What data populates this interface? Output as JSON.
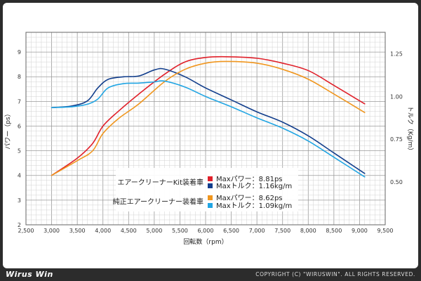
{
  "chart_data": {
    "type": "line",
    "xlabel": "回転数（rpm）",
    "ylabel_left": "パワー（ps）",
    "ylabel_right": "トルク（Kg/m）",
    "xlim": [
      2500,
      9500
    ],
    "ylim_left": [
      2,
      9.8
    ],
    "ylim_right": [
      0.25,
      1.375
    ],
    "grid": true,
    "x_ticks": [
      "2,500",
      "3,000",
      "3,500",
      "4,000",
      "4,500",
      "5,000",
      "5,500",
      "6,000",
      "6,500",
      "7,000",
      "7,500",
      "8,000",
      "8,500",
      "9,000",
      "9,500"
    ],
    "y_left_ticks": [
      "2",
      "3",
      "4",
      "5",
      "6",
      "7",
      "8",
      "9"
    ],
    "y_right_ticks": [
      "0.50",
      "0.75",
      "1.00",
      "1.25"
    ],
    "series": [
      {
        "name": "Maxパワー：8.81ps",
        "group": "エアークリーナーKit装着車",
        "axis": "left",
        "color": "#e0202a",
        "points": [
          [
            3000,
            4.0
          ],
          [
            3500,
            4.7
          ],
          [
            3800,
            5.3
          ],
          [
            4000,
            6.0
          ],
          [
            4300,
            6.6
          ],
          [
            4700,
            7.3
          ],
          [
            5200,
            8.1
          ],
          [
            5600,
            8.6
          ],
          [
            6000,
            8.78
          ],
          [
            6400,
            8.81
          ],
          [
            7000,
            8.75
          ],
          [
            7500,
            8.55
          ],
          [
            8000,
            8.25
          ],
          [
            8500,
            7.65
          ],
          [
            9100,
            6.9
          ]
        ]
      },
      {
        "name": "Maxトルク：1.16kg/m",
        "group": "エアークリーナーKit装着車",
        "axis": "right",
        "color": "#123e8c",
        "points": [
          [
            3000,
            0.935
          ],
          [
            3400,
            0.945
          ],
          [
            3700,
            0.975
          ],
          [
            3900,
            1.05
          ],
          [
            4100,
            1.1
          ],
          [
            4400,
            1.115
          ],
          [
            4700,
            1.12
          ],
          [
            5000,
            1.155
          ],
          [
            5200,
            1.16
          ],
          [
            5600,
            1.115
          ],
          [
            6000,
            1.05
          ],
          [
            6500,
            0.98
          ],
          [
            7000,
            0.91
          ],
          [
            7500,
            0.85
          ],
          [
            8000,
            0.77
          ],
          [
            8500,
            0.67
          ],
          [
            9100,
            0.55
          ]
        ]
      },
      {
        "name": "Maxパワー：8.62ps",
        "group": "純正エアークリーナー装着車",
        "axis": "left",
        "color": "#f0961e",
        "points": [
          [
            3000,
            4.0
          ],
          [
            3500,
            4.6
          ],
          [
            3800,
            5.0
          ],
          [
            4000,
            5.7
          ],
          [
            4300,
            6.3
          ],
          [
            4700,
            6.9
          ],
          [
            5200,
            7.8
          ],
          [
            5600,
            8.3
          ],
          [
            6000,
            8.55
          ],
          [
            6400,
            8.62
          ],
          [
            7000,
            8.55
          ],
          [
            7500,
            8.3
          ],
          [
            8000,
            7.9
          ],
          [
            8500,
            7.3
          ],
          [
            9100,
            6.55
          ]
        ]
      },
      {
        "name": "Maxトルク：1.09kg/m",
        "group": "純正エアークリーナー装着車",
        "axis": "right",
        "color": "#21a5e3",
        "points": [
          [
            3000,
            0.935
          ],
          [
            3400,
            0.94
          ],
          [
            3700,
            0.955
          ],
          [
            3900,
            0.985
          ],
          [
            4100,
            1.05
          ],
          [
            4400,
            1.075
          ],
          [
            4700,
            1.078
          ],
          [
            5000,
            1.085
          ],
          [
            5200,
            1.09
          ],
          [
            5600,
            1.055
          ],
          [
            6000,
            1.0
          ],
          [
            6500,
            0.94
          ],
          [
            7000,
            0.875
          ],
          [
            7500,
            0.815
          ],
          [
            8000,
            0.74
          ],
          [
            8500,
            0.645
          ],
          [
            9100,
            0.53
          ]
        ]
      }
    ],
    "legend": {
      "placement": "center-bottom",
      "groups": [
        {
          "label": "エアークリーナーKit装着車",
          "items": [
            {
              "label": "Maxパワー：8.81ps",
              "color": "#e0202a"
            },
            {
              "label": "Maxトルク：1.16kg/m",
              "color": "#123e8c"
            }
          ]
        },
        {
          "label": "純正エアークリーナー装着車",
          "items": [
            {
              "label": "Maxパワー：8.62ps",
              "color": "#f0961e"
            },
            {
              "label": "Maxトルク：1.09kg/m",
              "color": "#21a5e3"
            }
          ]
        }
      ]
    }
  },
  "footer": {
    "logo": "Wirus Win",
    "copyright": "COPYRIGHT (C) \"WIRUSWIN\". ALL RIGHTS RESERVED."
  }
}
